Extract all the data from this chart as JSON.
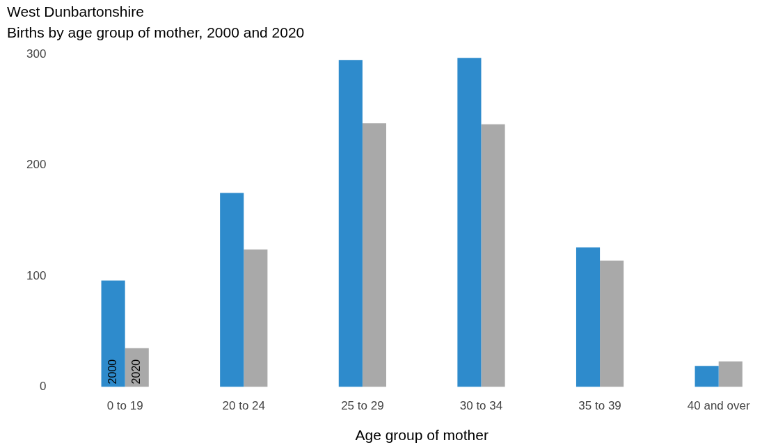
{
  "chart_data": {
    "type": "bar",
    "title": "West Dunbartonshire",
    "subtitle": "Births by age group of mother, 2000 and 2020",
    "xlabel": "Age group of mother",
    "categories": [
      "0 to 19",
      "20 to 24",
      "25 to 29",
      "30 to 34",
      "35 to 39",
      "40 and over"
    ],
    "series": [
      {
        "name": "2000",
        "color": "#2e8bcc",
        "values": [
          96,
          175,
          295,
          297,
          126,
          19
        ]
      },
      {
        "name": "2020",
        "color": "#a9a9a9",
        "values": [
          35,
          124,
          238,
          237,
          114,
          23
        ]
      }
    ],
    "ylim": [
      0,
      300
    ],
    "yticks": [
      0,
      100,
      200,
      300
    ],
    "grid": false,
    "legend": false
  }
}
